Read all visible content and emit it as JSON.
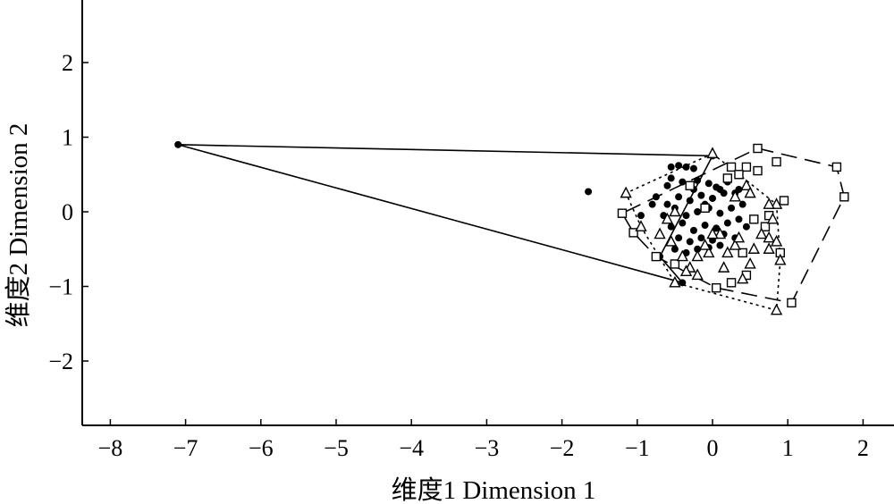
{
  "chart_data": {
    "type": "scatter",
    "title": "",
    "xlabel": "维度1 Dimension 1",
    "ylabel": "维度2 Dimension 2",
    "xlim": [
      -8.4,
      2.4
    ],
    "ylim": [
      -2.8,
      2.8
    ],
    "xticks": [
      -8,
      -7,
      -6,
      -5,
      -4,
      -3,
      -2,
      -1,
      0,
      1,
      2
    ],
    "yticks": [
      2,
      1,
      0,
      -1,
      -2
    ],
    "xtick_labels": [
      "−8",
      "−7",
      "−6",
      "−5",
      "−4",
      "−3",
      "−2",
      "−1",
      "0",
      "1",
      "2"
    ],
    "ytick_labels": [
      "2",
      "1",
      "0",
      "−1",
      "−2"
    ],
    "grid": false,
    "legend": "none",
    "series": [
      {
        "marker": "filled-circle",
        "hull": "solid",
        "points": [
          [
            -7.1,
            0.9
          ],
          [
            -1.65,
            0.27
          ],
          [
            -0.55,
            0.6
          ],
          [
            -0.45,
            0.62
          ],
          [
            -0.35,
            0.6
          ],
          [
            -0.25,
            0.58
          ],
          [
            -0.55,
            0.45
          ],
          [
            -0.4,
            0.4
          ],
          [
            -0.2,
            0.42
          ],
          [
            -0.05,
            0.38
          ],
          [
            0.05,
            0.33
          ],
          [
            0.2,
            0.4
          ],
          [
            0.3,
            0.25
          ],
          [
            -0.75,
            0.2
          ],
          [
            -0.6,
            0.1
          ],
          [
            -0.45,
            0.2
          ],
          [
            -0.3,
            0.15
          ],
          [
            -0.15,
            0.22
          ],
          [
            0.0,
            0.18
          ],
          [
            0.15,
            0.25
          ],
          [
            0.35,
            0.3
          ],
          [
            -0.65,
            -0.05
          ],
          [
            -0.5,
            0.05
          ],
          [
            -0.35,
            -0.05
          ],
          [
            -0.2,
            0.0
          ],
          [
            -0.05,
            0.05
          ],
          [
            0.1,
            -0.02
          ],
          [
            0.25,
            0.05
          ],
          [
            0.4,
            0.1
          ],
          [
            -0.55,
            -0.2
          ],
          [
            -0.4,
            -0.15
          ],
          [
            -0.25,
            -0.25
          ],
          [
            -0.1,
            -0.18
          ],
          [
            0.05,
            -0.22
          ],
          [
            0.2,
            -0.15
          ],
          [
            0.35,
            -0.1
          ],
          [
            -0.45,
            -0.35
          ],
          [
            -0.3,
            -0.4
          ],
          [
            -0.15,
            -0.35
          ],
          [
            0.0,
            -0.38
          ],
          [
            0.15,
            -0.3
          ],
          [
            -0.5,
            -0.5
          ],
          [
            -0.35,
            -0.55
          ],
          [
            -0.2,
            -0.5
          ],
          [
            -0.05,
            -0.48
          ],
          [
            0.1,
            -0.45
          ],
          [
            -0.95,
            -0.05
          ],
          [
            -0.7,
            -0.6
          ],
          [
            -0.4,
            -0.95
          ],
          [
            0.0,
            0.75
          ],
          [
            -0.1,
            0.1
          ],
          [
            0.3,
            -0.35
          ],
          [
            0.45,
            -0.2
          ],
          [
            -0.25,
            0.3
          ],
          [
            0.1,
            0.3
          ],
          [
            -0.6,
            0.35
          ],
          [
            -0.8,
            0.1
          ]
        ],
        "hull_order": [
          0,
          49,
          47,
          48
        ]
      },
      {
        "marker": "open-square",
        "hull": "long-dash",
        "points": [
          [
            0.6,
            0.85
          ],
          [
            0.85,
            0.67
          ],
          [
            1.65,
            0.6
          ],
          [
            1.75,
            0.2
          ],
          [
            1.05,
            -1.22
          ],
          [
            0.05,
            -1.02
          ],
          [
            -0.75,
            -0.6
          ],
          [
            -1.05,
            -0.28
          ],
          [
            -1.2,
            -0.02
          ],
          [
            0.25,
            0.6
          ],
          [
            0.45,
            0.6
          ],
          [
            0.6,
            0.55
          ],
          [
            0.2,
            0.45
          ],
          [
            0.35,
            0.5
          ],
          [
            0.95,
            0.15
          ],
          [
            0.75,
            -0.05
          ],
          [
            0.55,
            -0.1
          ],
          [
            0.4,
            -0.55
          ],
          [
            0.25,
            -0.95
          ],
          [
            -0.5,
            -0.7
          ],
          [
            -0.1,
            0.05
          ],
          [
            0.7,
            -0.2
          ],
          [
            0.9,
            -0.55
          ],
          [
            0.45,
            -0.85
          ],
          [
            -0.3,
            0.35
          ]
        ],
        "hull_order": [
          0,
          2,
          3,
          4,
          5,
          6,
          7,
          8
        ]
      },
      {
        "marker": "open-triangle",
        "hull": "dotted",
        "points": [
          [
            0.0,
            0.78
          ],
          [
            0.85,
            0.1
          ],
          [
            0.9,
            -0.65
          ],
          [
            0.85,
            -1.32
          ],
          [
            -0.5,
            -0.95
          ],
          [
            -0.95,
            -0.2
          ],
          [
            -1.15,
            0.25
          ],
          [
            0.45,
            0.35
          ],
          [
            0.3,
            0.2
          ],
          [
            0.75,
            0.1
          ],
          [
            0.8,
            -0.1
          ],
          [
            0.65,
            -0.3
          ],
          [
            0.75,
            -0.35
          ],
          [
            0.55,
            -0.5
          ],
          [
            0.75,
            -0.5
          ],
          [
            0.85,
            -0.4
          ],
          [
            0.5,
            -0.7
          ],
          [
            0.4,
            -0.9
          ],
          [
            0.3,
            -0.45
          ],
          [
            0.2,
            -0.55
          ],
          [
            0.15,
            -0.75
          ],
          [
            0.1,
            -0.3
          ],
          [
            -0.05,
            -0.55
          ],
          [
            -0.2,
            -0.6
          ],
          [
            -0.3,
            -0.75
          ],
          [
            -0.4,
            -0.6
          ],
          [
            -0.55,
            -0.4
          ],
          [
            -0.7,
            -0.3
          ],
          [
            -0.6,
            -0.1
          ],
          [
            -0.5,
            0.0
          ],
          [
            -0.35,
            -0.8
          ],
          [
            -0.2,
            -0.85
          ],
          [
            0.0,
            -0.3
          ],
          [
            0.35,
            -0.35
          ],
          [
            0.5,
            0.25
          ],
          [
            -0.1,
            -0.45
          ]
        ],
        "hull_order": [
          0,
          1,
          2,
          3,
          4,
          5,
          6
        ]
      }
    ]
  }
}
